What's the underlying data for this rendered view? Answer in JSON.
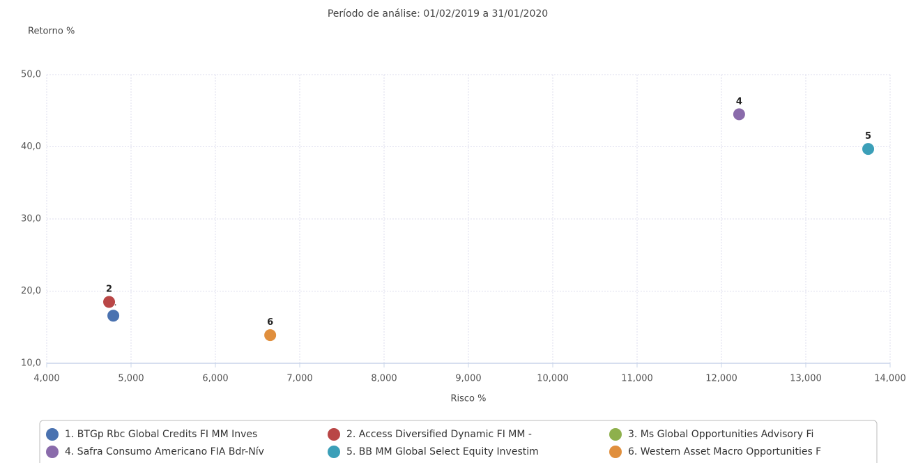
{
  "chart_data": {
    "type": "scatter",
    "title": "Período de análise: 01/02/2019 a 31/01/2020",
    "y_label": "Retorno %",
    "x_label": "Risco %",
    "xlim": [
      4000,
      14000
    ],
    "ylim": [
      10,
      50
    ],
    "xticks": [
      {
        "value": 4000,
        "label": "4,000"
      },
      {
        "value": 5000,
        "label": "5,000"
      },
      {
        "value": 6000,
        "label": "6,000"
      },
      {
        "value": 7000,
        "label": "7,000"
      },
      {
        "value": 8000,
        "label": "8,000"
      },
      {
        "value": 9000,
        "label": "9,000"
      },
      {
        "value": 10000,
        "label": "10,000"
      },
      {
        "value": 11000,
        "label": "11,000"
      },
      {
        "value": 12000,
        "label": "12,000"
      },
      {
        "value": 13000,
        "label": "13,000"
      },
      {
        "value": 14000,
        "label": "14,000"
      }
    ],
    "yticks": [
      {
        "value": 10,
        "label": "10,0"
      },
      {
        "value": 20,
        "label": "20,0"
      },
      {
        "value": 30,
        "label": "30,0"
      },
      {
        "value": 40,
        "label": "40,0"
      },
      {
        "value": 50,
        "label": "50,0"
      }
    ],
    "grid": true,
    "legend": "bottom",
    "series": [
      {
        "name": "1. BTGp Rbc Global Credits FI MM Inves",
        "label": "1",
        "color": "#4a72b0",
        "x": [
          4790
        ],
        "y": [
          16.6
        ]
      },
      {
        "name": "2. Access Diversified Dynamic FI MM -",
        "label": "2",
        "color": "#b94646",
        "x": [
          4740
        ],
        "y": [
          18.5
        ]
      },
      {
        "name": "3. Ms Global Opportunities Advisory Fi",
        "color": "#8eb04c",
        "x": [],
        "y": []
      },
      {
        "name": "4. Safra Consumo Americano FIA Bdr-Nív",
        "label": "4",
        "color": "#8a6bab",
        "x": [
          12210
        ],
        "y": [
          44.5
        ]
      },
      {
        "name": "5. BB MM Global Select Equity Investim",
        "label": "5",
        "color": "#3b9fb8",
        "x": [
          13740
        ],
        "y": [
          39.7
        ]
      },
      {
        "name": "6. Western Asset Macro Opportunities F",
        "label": "6",
        "color": "#e08f3d",
        "x": [
          6650
        ],
        "y": [
          13.9
        ]
      }
    ]
  }
}
